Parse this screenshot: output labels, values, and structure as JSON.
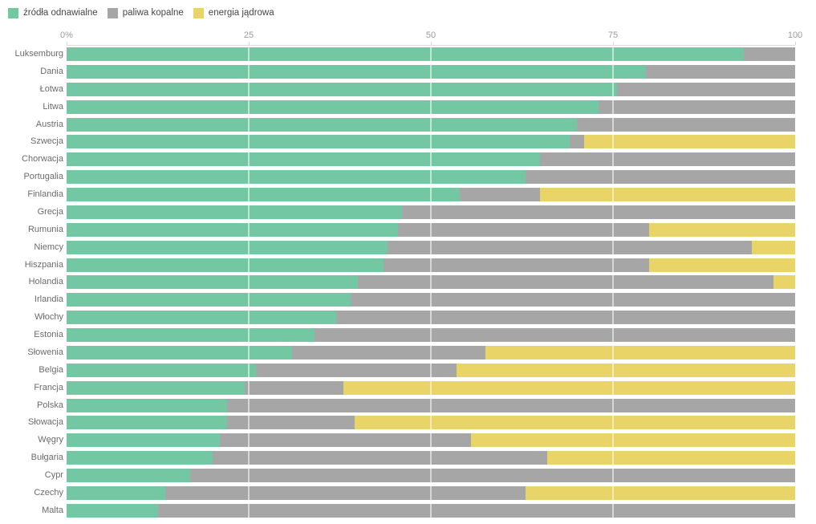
{
  "legend": {
    "renewables": "źródła odnawialne",
    "fossil": "paliwa kopalne",
    "nuclear": "energia jądrowa"
  },
  "colors": {
    "renewables": "#74c7a3",
    "fossil": "#a6a6a6",
    "nuclear": "#e9d467",
    "axis_label": "#9b9b9b",
    "row_label": "#6b6b6b",
    "axis_line": "#dcdcdc"
  },
  "axis": {
    "ticks": [
      {
        "label": "0%",
        "value": 0
      },
      {
        "label": "25",
        "value": 25
      },
      {
        "label": "50",
        "value": 50
      },
      {
        "label": "75",
        "value": 75
      },
      {
        "label": "100",
        "value": 100
      }
    ]
  },
  "chart_data": {
    "type": "bar",
    "orientation": "horizontal",
    "stacked": true,
    "unit": "%",
    "xlim": [
      0,
      100
    ],
    "legend_position": "top-left",
    "grid": "vertical-white-lines-at-25-50-75",
    "categories": [
      "Luksemburg",
      "Dania",
      "Łotwa",
      "Litwa",
      "Austria",
      "Szwecja",
      "Chorwacja",
      "Portugalia",
      "Finlandia",
      "Grecja",
      "Rumunia",
      "Niemcy",
      "Hiszpania",
      "Holandia",
      "Irlandia",
      "Włochy",
      "Estonia",
      "Słowenia",
      "Belgia",
      "Francja",
      "Polska",
      "Słowacja",
      "Węgry",
      "Bułgaria",
      "Cypr",
      "Czechy",
      "Malta"
    ],
    "series": [
      {
        "name": "źródła odnawialne",
        "color_key": "renewables",
        "values": [
          93,
          79.5,
          75.5,
          73,
          70,
          69,
          65,
          63,
          54,
          46,
          45.5,
          44,
          43.5,
          40,
          39,
          37,
          34,
          31,
          26,
          24.5,
          22,
          22,
          21,
          20,
          17,
          13.5,
          12.5
        ]
      },
      {
        "name": "paliwa kopalne",
        "color_key": "fossil",
        "values": [
          7,
          20.5,
          24.5,
          27,
          30,
          2,
          35,
          37,
          11,
          54,
          34.5,
          50,
          36.5,
          57,
          61,
          63,
          66,
          26.5,
          27.5,
          13.5,
          78,
          17.5,
          34.5,
          46,
          83,
          49.5,
          87.5
        ]
      },
      {
        "name": "energia jądrowa",
        "color_key": "nuclear",
        "values": [
          0,
          0,
          0,
          0,
          0,
          29,
          0,
          0,
          35,
          0,
          20,
          6,
          20,
          3,
          0,
          0,
          0,
          42.5,
          46.5,
          62,
          0,
          60.5,
          44.5,
          34,
          0,
          37,
          0
        ]
      }
    ]
  }
}
